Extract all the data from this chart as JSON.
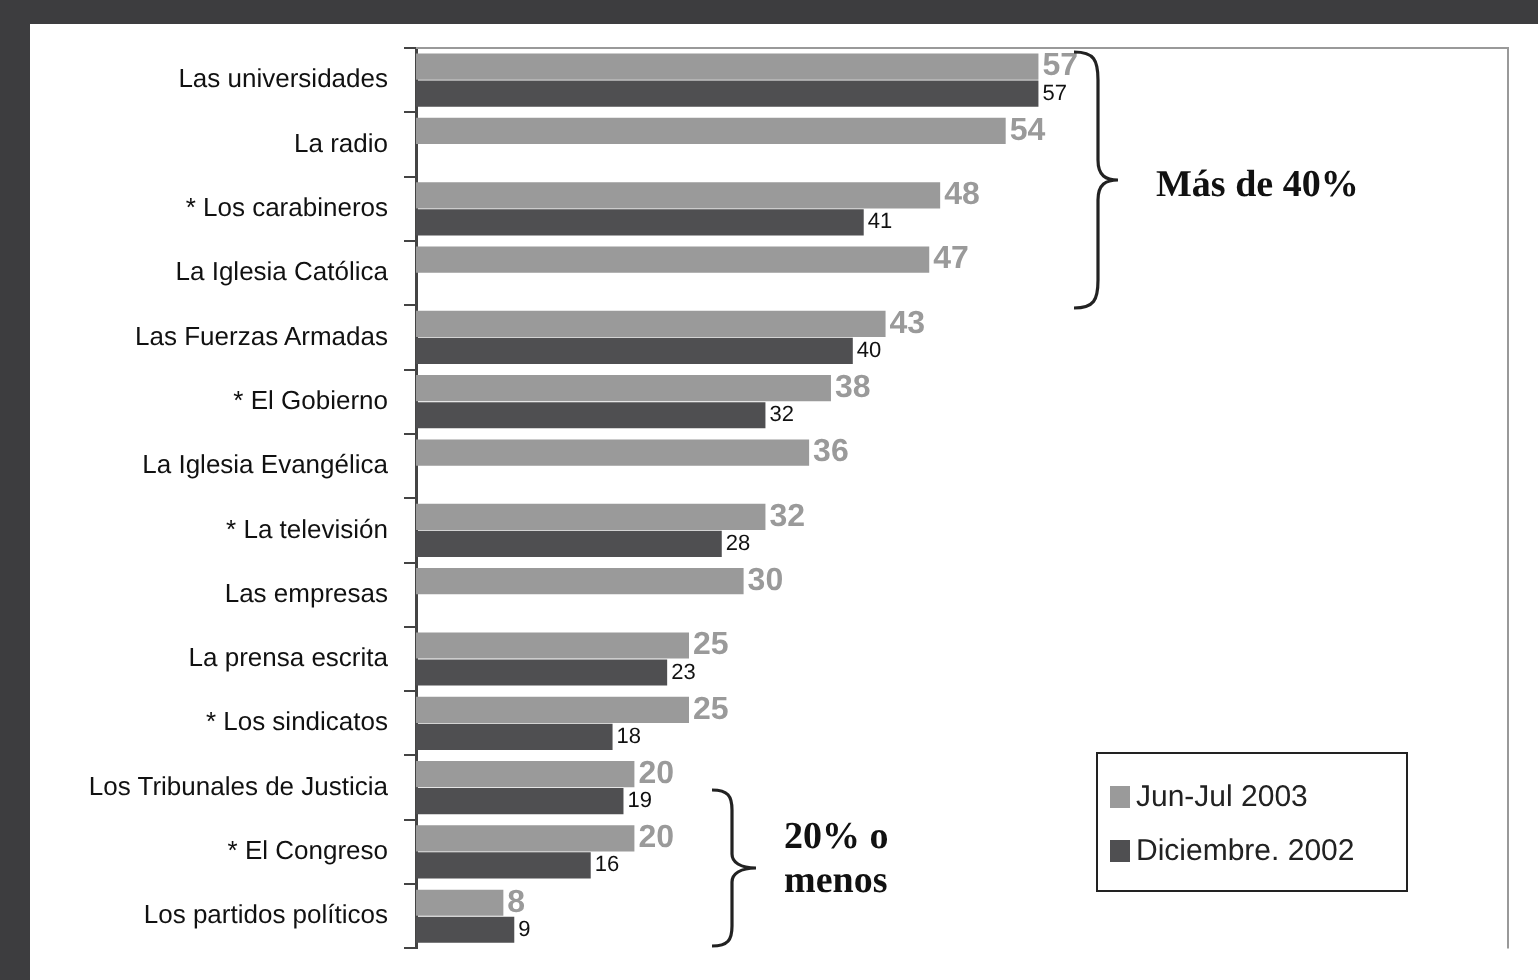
{
  "chart_data": {
    "type": "bar",
    "orientation": "horizontal",
    "categories": [
      "Las universidades",
      "La radio",
      "* Los carabineros",
      "La Iglesia Católica",
      "Las Fuerzas Armadas",
      "* El Gobierno",
      "La Iglesia Evangélica",
      "* La televisión",
      "Las empresas",
      "La prensa escrita",
      "* Los sindicatos",
      "Los Tribunales de Justicia",
      "* El Congreso",
      "Los partidos políticos"
    ],
    "series": [
      {
        "name": "Jun-Jul 2003",
        "color": "#9a9a9a",
        "values": [
          57,
          54,
          48,
          47,
          43,
          38,
          36,
          32,
          30,
          25,
          25,
          20,
          20,
          8
        ]
      },
      {
        "name": "Diciembre. 2002",
        "color": "#4f4f51",
        "values": [
          57,
          null,
          41,
          null,
          40,
          32,
          null,
          28,
          null,
          23,
          18,
          19,
          16,
          9
        ]
      }
    ],
    "xlim": [
      0,
      100
    ],
    "tick_labels": "y",
    "data_labels": true,
    "grid": false,
    "legend": "bottom right",
    "annotations": [
      "Más de 40%",
      "20% o menos"
    ]
  }
}
